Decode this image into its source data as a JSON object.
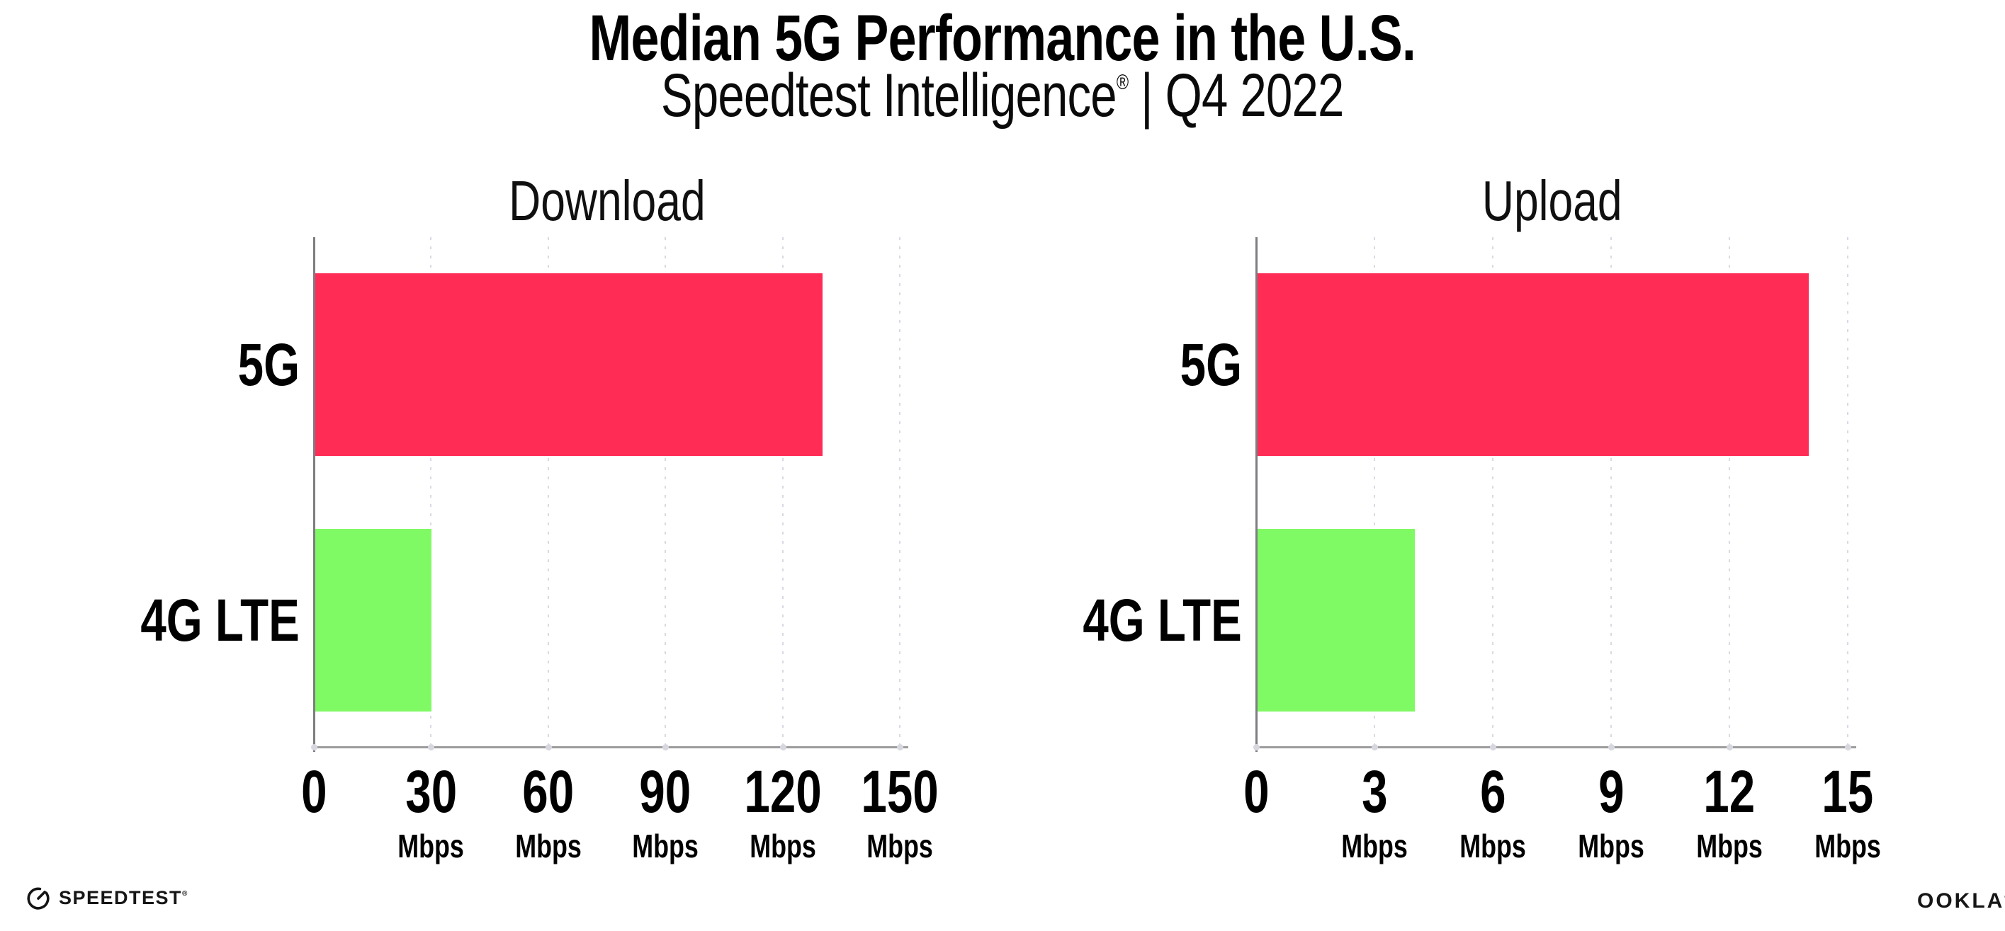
{
  "header": {
    "title": "Median 5G Performance in the U.S.",
    "subtitle": {
      "brand": "Speedtest Intelligence",
      "registered": "®",
      "period": " | Q4 2022"
    }
  },
  "colors": {
    "bar_5g": "#FF2D56",
    "bar_4g_lte": "#80FA64",
    "gridline": "#D9DAE3",
    "y_axis": "#7D7D82",
    "x_axis": "#9C9C9C",
    "text": "#000000"
  },
  "chart_data": [
    {
      "type": "bar",
      "orientation": "horizontal",
      "title": "Download",
      "categories": [
        "5G",
        "4G LTE"
      ],
      "values": [
        130,
        30
      ],
      "unit": "Mbps",
      "xlim": [
        0,
        150
      ],
      "xticks": [
        0,
        30,
        60,
        90,
        120,
        150
      ],
      "grid": "dotted-vertical",
      "legend": "none",
      "bar_colors": [
        "#FF2D56",
        "#80FA64"
      ]
    },
    {
      "type": "bar",
      "orientation": "horizontal",
      "title": "Upload",
      "categories": [
        "5G",
        "4G LTE"
      ],
      "values": [
        14,
        4
      ],
      "unit": "Mbps",
      "xlim": [
        0,
        15
      ],
      "xticks": [
        0,
        3,
        6,
        9,
        12,
        15
      ],
      "grid": "dotted-vertical",
      "legend": "none",
      "bar_colors": [
        "#FF2D56",
        "#80FA64"
      ]
    }
  ],
  "footer": {
    "speedtest_label": "SPEEDTEST",
    "speedtest_mark": "®",
    "ookla_label": "OOKLA",
    "ookla_mark": "®"
  }
}
